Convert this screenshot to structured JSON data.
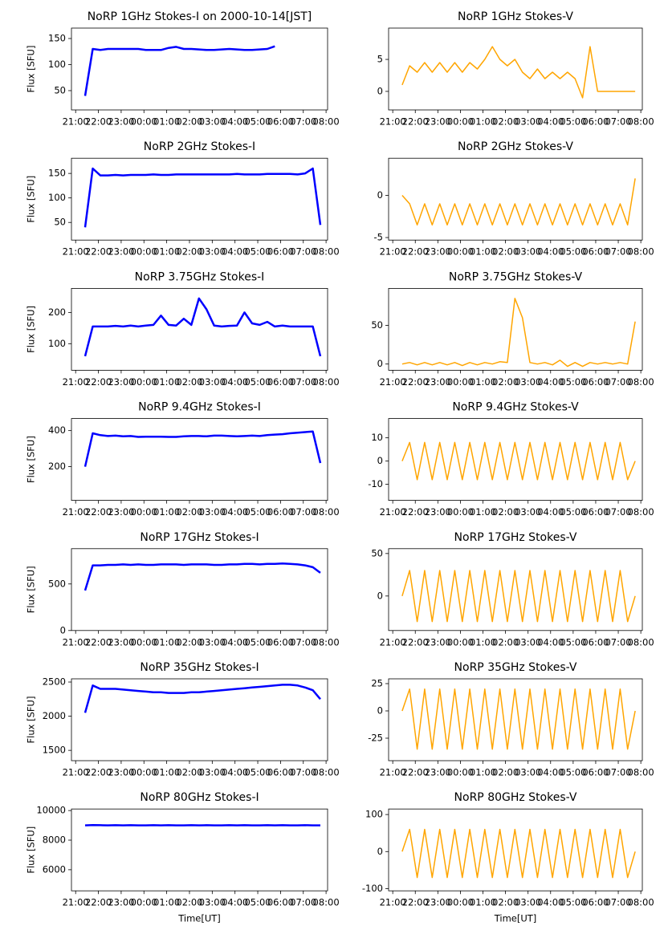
{
  "chart_data": {
    "type": "line",
    "x": [
      "21:25",
      "21:45",
      "22:05",
      "22:25",
      "22:45",
      "23:05",
      "23:25",
      "23:45",
      "00:05",
      "00:25",
      "00:45",
      "01:05",
      "01:25",
      "01:45",
      "02:05",
      "02:25",
      "02:45",
      "03:05",
      "03:25",
      "03:45",
      "04:05",
      "04:25",
      "04:45",
      "05:05",
      "05:25",
      "05:45",
      "06:05",
      "06:25",
      "06:45",
      "07:05",
      "07:25",
      "07:45"
    ],
    "xlim": [
      "20:49",
      "08:04"
    ],
    "xticks": [
      "21:00",
      "22:00",
      "23:00",
      "00:00",
      "01:00",
      "02:00",
      "03:00",
      "04:00",
      "05:00",
      "06:00",
      "07:00",
      "08:00"
    ],
    "panels": [
      {
        "title": "NoRP 1GHz Stokes-I on 2000-10-14[JST]",
        "ylabel": "Flux [SFU]",
        "color": "#0000ff",
        "ylim": [
          13,
          170
        ],
        "yticks": [
          50,
          100,
          150
        ],
        "values": [
          40,
          130,
          128,
          130,
          130,
          130,
          130,
          130,
          128,
          128,
          128,
          132,
          134,
          130,
          130,
          129,
          128,
          128,
          129,
          130,
          129,
          128,
          128,
          129,
          130,
          135,
          null,
          null,
          null,
          null,
          null,
          null
        ]
      },
      {
        "title": "NoRP 1GHz Stokes-V",
        "color": "#ffa500",
        "ylim": [
          -2.9,
          9.9
        ],
        "yticks": [
          0,
          5
        ],
        "values": [
          1,
          4,
          3,
          4.5,
          3,
          4.5,
          3,
          4.5,
          3,
          4.5,
          3.5,
          5,
          7,
          5,
          4,
          5,
          3,
          2,
          3.5,
          2,
          3,
          2,
          3,
          2,
          -1,
          7,
          0,
          0,
          0,
          0,
          0,
          0
        ]
      },
      {
        "title": "NoRP 2GHz Stokes-I",
        "ylabel": "Flux [SFU]",
        "color": "#0000ff",
        "ylim": [
          14,
          181
        ],
        "yticks": [
          50,
          100,
          150
        ],
        "values": [
          40,
          160,
          146,
          146,
          147,
          146,
          147,
          147,
          147,
          148,
          147,
          147,
          148,
          148,
          148,
          148,
          148,
          148,
          148,
          148,
          149,
          148,
          148,
          148,
          149,
          149,
          149,
          149,
          148,
          150,
          160,
          45
        ]
      },
      {
        "title": "NoRP 2GHz Stokes-V",
        "color": "#ffa500",
        "ylim": [
          -5.3,
          4.4
        ],
        "yticks": [
          -5,
          0
        ],
        "values": [
          0,
          -1,
          -3.5,
          -1,
          -3.5,
          -1,
          -3.5,
          -1,
          -3.5,
          -1,
          -3.5,
          -1,
          -3.5,
          -1,
          -3.5,
          -1,
          -3.5,
          -1,
          -3.5,
          -1,
          -3.5,
          -1,
          -3.5,
          -1,
          -3.5,
          -1,
          -3.5,
          -1,
          -3.5,
          -1,
          -3.5,
          2
        ]
      },
      {
        "title": "NoRP 3.75GHz Stokes-I",
        "ylabel": "Flux [SFU]",
        "color": "#0000ff",
        "ylim": [
          15,
          277
        ],
        "yticks": [
          100,
          200
        ],
        "values": [
          60,
          155,
          155,
          155,
          157,
          155,
          158,
          155,
          158,
          160,
          190,
          160,
          158,
          180,
          160,
          245,
          210,
          158,
          155,
          157,
          158,
          200,
          165,
          160,
          170,
          155,
          158,
          155,
          155,
          155,
          155,
          60
        ]
      },
      {
        "title": "NoRP 3.75GHz Stokes-V",
        "color": "#ffa500",
        "ylim": [
          -8,
          98
        ],
        "yticks": [
          0,
          50
        ],
        "values": [
          0,
          2,
          -1,
          2,
          -1,
          2,
          -1,
          2,
          -2,
          2,
          -1,
          2,
          0,
          3,
          2,
          85,
          60,
          2,
          0,
          2,
          -1,
          5,
          -3,
          2,
          -3,
          2,
          0,
          2,
          0,
          2,
          0,
          55
        ]
      },
      {
        "title": "NoRP 9.4GHz Stokes-I",
        "ylabel": "Flux [SFU]",
        "color": "#0000ff",
        "ylim": [
          13,
          467
        ],
        "yticks": [
          200,
          400
        ],
        "values": [
          200,
          385,
          375,
          370,
          372,
          368,
          370,
          365,
          366,
          366,
          366,
          365,
          365,
          368,
          370,
          370,
          368,
          372,
          372,
          370,
          368,
          370,
          372,
          370,
          375,
          378,
          380,
          385,
          388,
          392,
          395,
          220
        ]
      },
      {
        "title": "NoRP 9.4GHz Stokes-V",
        "color": "#ffa500",
        "ylim": [
          -16.9,
          18.3
        ],
        "yticks": [
          -10,
          0,
          10
        ],
        "values": [
          0,
          8,
          -8,
          8,
          -8,
          8,
          -8,
          8,
          -8,
          8,
          -8,
          8,
          -8,
          8,
          -8,
          8,
          -8,
          8,
          -8,
          8,
          -8,
          8,
          -8,
          8,
          -8,
          8,
          -8,
          8,
          -8,
          8,
          -8,
          0
        ]
      },
      {
        "title": "NoRP 17GHz Stokes-I",
        "ylabel": "Flux [SFU]",
        "color": "#0000ff",
        "ylim": [
          0,
          879
        ],
        "yticks": [
          0,
          500
        ],
        "values": [
          430,
          700,
          700,
          705,
          705,
          710,
          705,
          710,
          705,
          705,
          710,
          710,
          710,
          705,
          710,
          710,
          710,
          705,
          705,
          710,
          710,
          715,
          715,
          710,
          715,
          715,
          720,
          715,
          710,
          700,
          680,
          620
        ]
      },
      {
        "title": "NoRP 17GHz Stokes-V",
        "color": "#ffa500",
        "ylim": [
          -40.6,
          55.7
        ],
        "yticks": [
          0,
          50
        ],
        "values": [
          0,
          30,
          -30,
          30,
          -30,
          30,
          -30,
          30,
          -30,
          30,
          -30,
          30,
          -30,
          30,
          -30,
          30,
          -30,
          30,
          -30,
          30,
          -30,
          30,
          -30,
          30,
          -30,
          30,
          -30,
          30,
          -30,
          30,
          -30,
          0
        ]
      },
      {
        "title": "NoRP 35GHz Stokes-I",
        "ylabel": "Flux [SFU]",
        "color": "#0000ff",
        "ylim": [
          1349,
          2547
        ],
        "yticks": [
          1500,
          2000,
          2500
        ],
        "values": [
          2050,
          2450,
          2400,
          2400,
          2400,
          2390,
          2380,
          2370,
          2360,
          2350,
          2350,
          2340,
          2340,
          2340,
          2350,
          2350,
          2360,
          2370,
          2380,
          2390,
          2400,
          2410,
          2420,
          2430,
          2440,
          2450,
          2460,
          2460,
          2450,
          2420,
          2380,
          2250
        ]
      },
      {
        "title": "NoRP 35GHz Stokes-V",
        "color": "#ffa500",
        "ylim": [
          -45.6,
          29.4
        ],
        "yticks": [
          -25,
          0,
          25
        ],
        "values": [
          0,
          20,
          -35,
          20,
          -35,
          20,
          -35,
          20,
          -35,
          20,
          -35,
          20,
          -35,
          20,
          -35,
          20,
          -35,
          20,
          -35,
          20,
          -35,
          20,
          -35,
          20,
          -35,
          20,
          -35,
          20,
          -35,
          20,
          -35,
          0
        ]
      },
      {
        "title": "NoRP 80GHz Stokes-I",
        "ylabel": "Flux [SFU]",
        "xlabel": "Time[UT]",
        "color": "#0000ff",
        "ylim": [
          4574,
          10106
        ],
        "yticks": [
          6000,
          8000,
          10000
        ],
        "values": [
          9000,
          9020,
          9010,
          9000,
          9010,
          9000,
          9010,
          9000,
          9000,
          9010,
          9000,
          9010,
          9000,
          9000,
          9010,
          9000,
          9010,
          9000,
          9000,
          9010,
          9000,
          9010,
          9000,
          9000,
          9010,
          9000,
          9010,
          9000,
          9000,
          9010,
          9000,
          9000
        ]
      },
      {
        "title": "NoRP 80GHz Stokes-V",
        "xlabel": "Time[UT]",
        "color": "#ffa500",
        "ylim": [
          -106,
          115
        ],
        "yticks": [
          -100,
          0,
          100
        ],
        "values": [
          0,
          60,
          -70,
          60,
          -70,
          60,
          -70,
          60,
          -70,
          60,
          -70,
          60,
          -70,
          60,
          -70,
          60,
          -70,
          60,
          -70,
          60,
          -70,
          60,
          -70,
          60,
          -70,
          60,
          -70,
          60,
          -70,
          60,
          -70,
          0
        ]
      }
    ]
  }
}
